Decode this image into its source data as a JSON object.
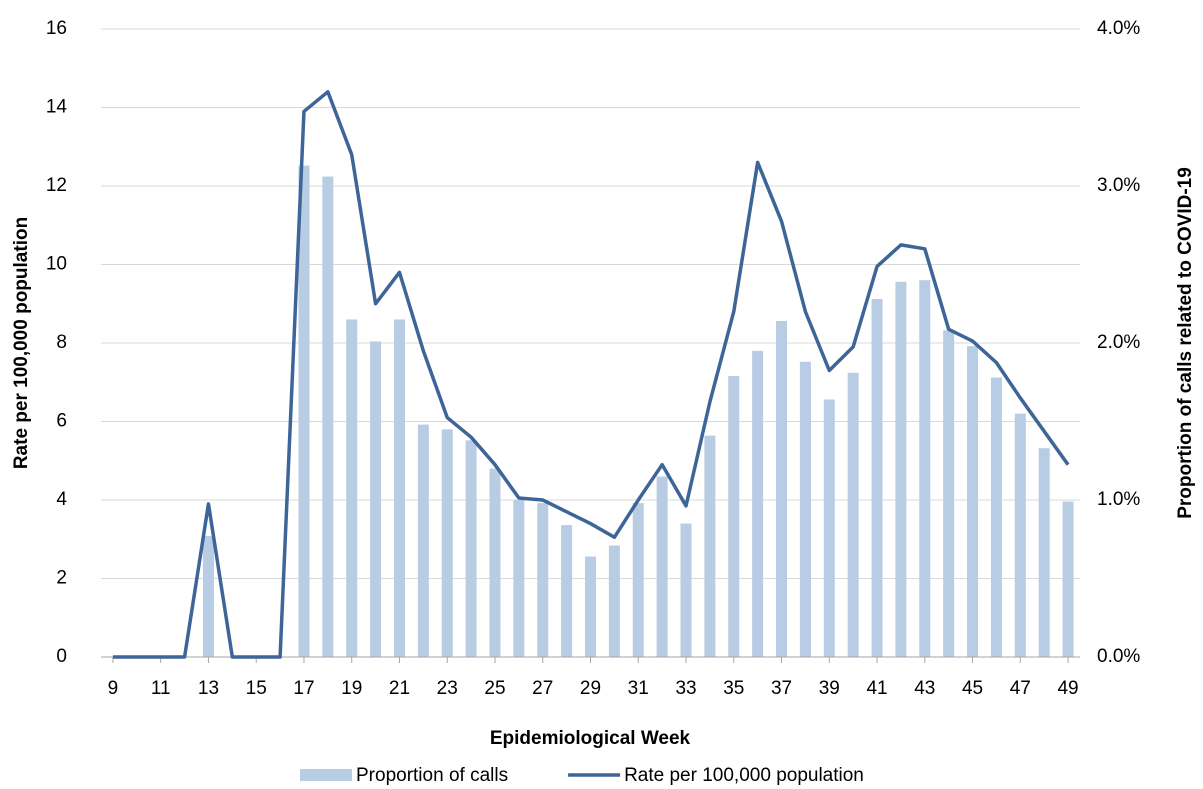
{
  "chart_data": {
    "type": "combo",
    "x_label": "Epidemiological Week",
    "y_label": "Rate per 100,000 population",
    "y2_label": "Proportion of calls related to COVID-19",
    "x": [
      9,
      10,
      11,
      12,
      13,
      14,
      15,
      16,
      17,
      18,
      19,
      20,
      21,
      22,
      23,
      24,
      25,
      26,
      27,
      28,
      29,
      30,
      31,
      32,
      33,
      34,
      35,
      36,
      37,
      38,
      39,
      40,
      41,
      42,
      43,
      44,
      45,
      46,
      47,
      48,
      49
    ],
    "xlim": [
      8.5,
      49.5
    ],
    "xticks": [
      9,
      11,
      13,
      15,
      17,
      19,
      21,
      23,
      25,
      27,
      29,
      31,
      33,
      35,
      37,
      39,
      41,
      43,
      45,
      47,
      49
    ],
    "ylim": [
      0,
      16
    ],
    "yticks": [
      0,
      2,
      4,
      6,
      8,
      10,
      12,
      14,
      16
    ],
    "y2lim": [
      0,
      4
    ],
    "y2ticks": [
      {
        "value": 0,
        "label": "0.0%"
      },
      {
        "value": 1,
        "label": "1.0%"
      },
      {
        "value": 2,
        "label": "2.0%"
      },
      {
        "value": 3,
        "label": "3.0%"
      },
      {
        "value": 4,
        "label": "4.0%"
      }
    ],
    "grid": true,
    "legend": "bottom",
    "series": [
      {
        "name": "Proportion of calls",
        "type": "bar",
        "axis": "y2",
        "color": "#b8cce4",
        "values": [
          0,
          0,
          0,
          0,
          0.77,
          0,
          0,
          0,
          3.13,
          3.06,
          2.15,
          2.01,
          2.15,
          1.48,
          1.45,
          1.38,
          1.2,
          1.0,
          0.98,
          0.84,
          0.64,
          0.71,
          0.98,
          1.15,
          0.85,
          1.41,
          1.79,
          1.95,
          2.14,
          1.88,
          1.64,
          1.81,
          2.28,
          2.39,
          2.4,
          2.08,
          1.98,
          1.78,
          1.55,
          1.33,
          0.99
        ]
      },
      {
        "name": "Rate per 100,000 population",
        "type": "line",
        "color": "#3d6597",
        "values": [
          0,
          0,
          0,
          0,
          3.9,
          0,
          0,
          0,
          13.9,
          14.4,
          12.8,
          9.0,
          9.8,
          7.8,
          6.1,
          5.6,
          4.9,
          4.05,
          4.0,
          3.7,
          3.4,
          3.05,
          4.0,
          4.9,
          3.85,
          6.5,
          8.8,
          12.6,
          11.1,
          8.8,
          7.3,
          7.9,
          9.95,
          10.5,
          10.4,
          8.35,
          8.05,
          7.5,
          6.6,
          5.75,
          4.9
        ]
      }
    ]
  }
}
